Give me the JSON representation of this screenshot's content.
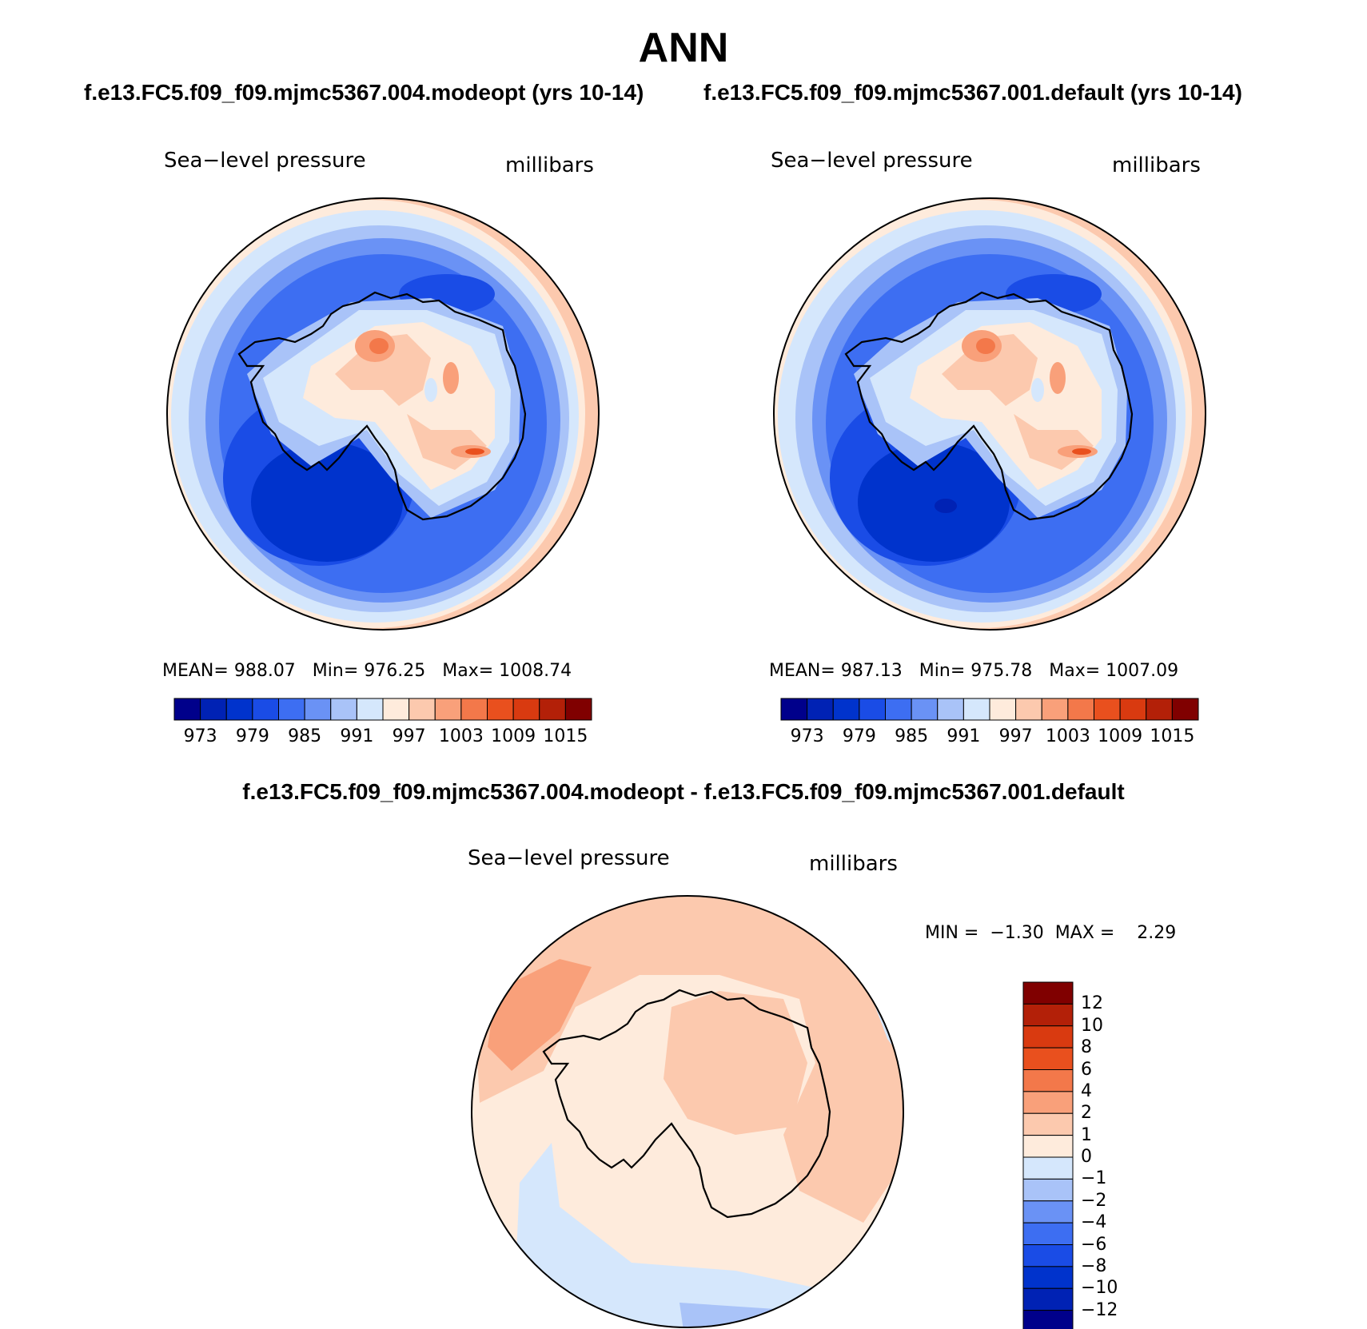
{
  "chart_data": [
    {
      "type": "contour-map",
      "title": "ANN",
      "subtitle": "f.e13.FC5.f09_f09.mjmc5367.004.modeopt (yrs 10-14)",
      "variable": "Sea−level pressure",
      "units": "millibars",
      "projection": "south polar stereographic",
      "stats": {
        "mean_label": "MEAN=",
        "mean": "988.07",
        "min_label": "Min=",
        "min": "976.25",
        "max_label": "Max=",
        "max": "1008.74"
      },
      "colorbar": {
        "levels": [
          973,
          976,
          979,
          982,
          985,
          988,
          991,
          994,
          997,
          1000,
          1003,
          1006,
          1009,
          1012,
          1015
        ],
        "tick_labels": [
          "973",
          "979",
          "985",
          "991",
          "997",
          "1003",
          "1009",
          "1015"
        ],
        "colors": [
          "#00008B",
          "#0022B4",
          "#0033CC",
          "#1A4CE6",
          "#3D6EF2",
          "#6A92F5",
          "#A9C3F8",
          "#D5E7FC",
          "#FEEBDC",
          "#FCC9AE",
          "#F9A07A",
          "#F3784A",
          "#E9501E",
          "#D93A10",
          "#B32008",
          "#800000"
        ]
      }
    },
    {
      "type": "contour-map",
      "subtitle": "f.e13.FC5.f09_f09.mjmc5367.001.default (yrs 10-14)",
      "variable": "Sea−level pressure",
      "units": "millibars",
      "stats": {
        "mean_label": "MEAN=",
        "mean": "987.13",
        "min_label": "Min=",
        "min": "975.78",
        "max_label": "Max=",
        "max": "1007.09"
      },
      "colorbar": {
        "tick_labels": [
          "973",
          "979",
          "985",
          "991",
          "997",
          "1003",
          "1009",
          "1015"
        ]
      }
    },
    {
      "type": "contour-map",
      "subtitle": "f.e13.FC5.f09_f09.mjmc5367.004.modeopt - f.e13.FC5.f09_f09.mjmc5367.001.default",
      "variable": "Sea−level pressure",
      "units": "millibars",
      "stats": {
        "min_label": "MIN =",
        "min": "−1.30",
        "max_label": "MAX =",
        "max": "2.29"
      },
      "colorbar": {
        "orientation": "vertical",
        "levels": [
          -12,
          -10,
          -8,
          -6,
          -4,
          -2,
          -1,
          0,
          1,
          2,
          4,
          6,
          8,
          10,
          12
        ],
        "tick_labels": [
          "12",
          "10",
          "8",
          "6",
          "4",
          "2",
          "1",
          "0",
          "−1",
          "−2",
          "−4",
          "−6",
          "−8",
          "−10",
          "−12"
        ],
        "colors": [
          "#800000",
          "#B32008",
          "#D93A10",
          "#E9501E",
          "#F3784A",
          "#F9A07A",
          "#FCC9AE",
          "#FEEBDC",
          "#D5E7FC",
          "#A9C3F8",
          "#6A92F5",
          "#3D6EF2",
          "#1A4CE6",
          "#0033CC",
          "#0022B4",
          "#00008B"
        ]
      }
    }
  ]
}
